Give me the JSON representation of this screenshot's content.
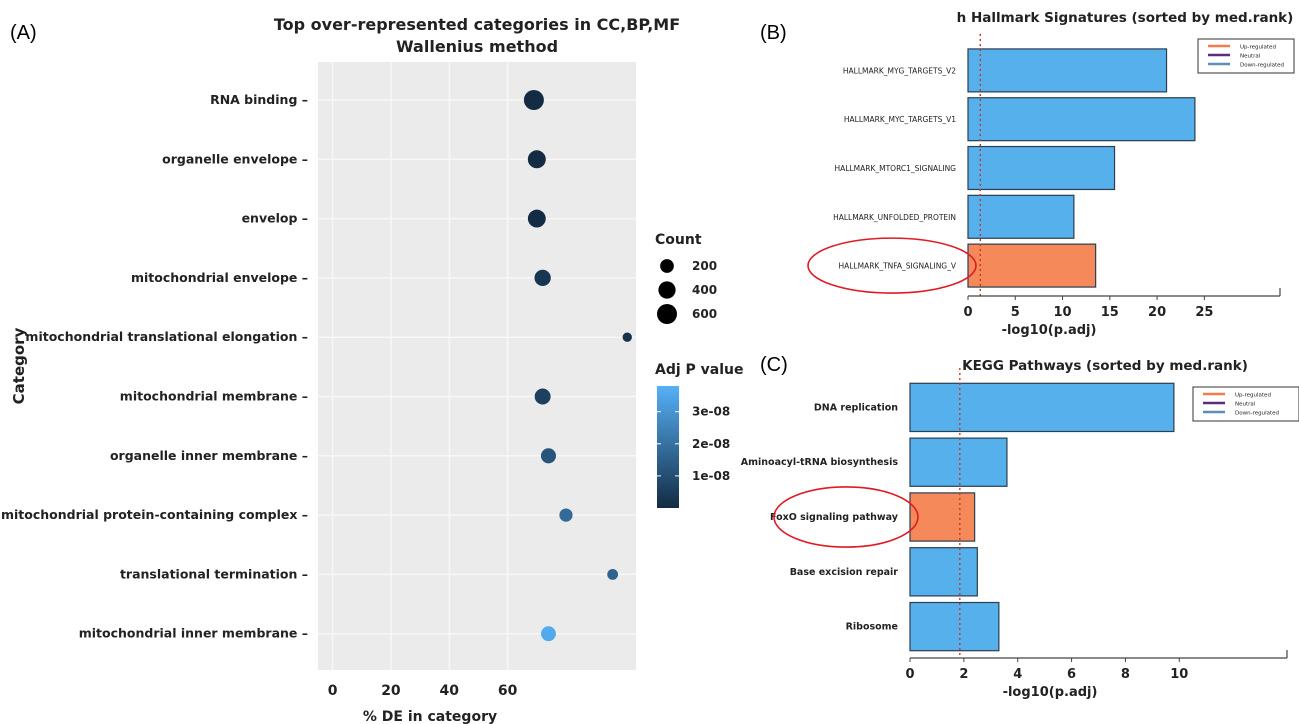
{
  "panel_labels": {
    "a": "(A)",
    "b": "(B)",
    "c": "(C)"
  },
  "chart_data": [
    {
      "type": "scatter",
      "title": "Top over-represented categories in CC,BP,MF",
      "subtitle": "Wallenius method",
      "xlabel": "% DE in category",
      "ylabel": "Category",
      "xlim": [
        -5,
        104
      ],
      "xticks": [
        0,
        20,
        40,
        60
      ],
      "categories": [
        "RNA binding",
        "organelle envelope",
        "envelop",
        "mitochondrial envelope",
        "mitochondrial translational elongation",
        "mitochondrial membrane",
        "organelle inner membrane",
        "mitochondrial protein-containing complex",
        "translational termination",
        "mitochondrial inner membrane"
      ],
      "x": [
        69,
        70,
        70,
        72,
        101,
        72,
        74,
        80,
        96,
        74
      ],
      "count": [
        600,
        450,
        440,
        340,
        50,
        320,
        270,
        180,
        90,
        260
      ],
      "adj_p": [
        0,
        0,
        0,
        3e-09,
        2e-09,
        6e-09,
        1.2e-08,
        1.8e-08,
        1.6e-08,
        3.6e-08
      ],
      "size_legend": {
        "title": "Count",
        "values": [
          200,
          400,
          600
        ]
      },
      "color_legend": {
        "title": "Adj P value",
        "ticks": [
          {
            "label": "3e-08",
            "value": 3e-08
          },
          {
            "label": "2e-08",
            "value": 2e-08
          },
          {
            "label": "1e-08",
            "value": 1e-08
          }
        ],
        "min": 0,
        "max": 3.8e-08,
        "low_color": "#132b43",
        "high_color": "#56b1f7"
      },
      "grid": true,
      "panel_bg": "#ebebeb"
    },
    {
      "type": "bar",
      "orientation": "horizontal",
      "title": "h Hallmark Signatures (sorted by med.rank)",
      "xlabel": "-log10(p.adj)",
      "categories": [
        "HALLMARK_MYG_TARGETS_V2",
        "HALLMARK_MYC_TARGETS_V1",
        "HALLMARK_MTORC1_SIGNALING",
        "HALLMARK_UNFOLDED_PROTEIN",
        "HALLMARK_TNFA_SIGNALING_V"
      ],
      "values": [
        21,
        24,
        15.5,
        11.2,
        13.5
      ],
      "regulation": [
        "down",
        "down",
        "down",
        "down",
        "up"
      ],
      "highlighted": "HALLMARK_TNFA_SIGNALING_V",
      "xticks": [
        0,
        5,
        10,
        15,
        20,
        25
      ],
      "xlim": [
        0,
        33
      ],
      "threshold": 1.3,
      "legend": {
        "placement": "top-right",
        "entries": [
          {
            "label": "Up-regulated",
            "color": "#f47b4a"
          },
          {
            "label": "Neutral",
            "color": "#5a2d82"
          },
          {
            "label": "Down-regulated",
            "color": "#5b8fb5"
          }
        ]
      }
    },
    {
      "type": "bar",
      "orientation": "horizontal",
      "title": "KEGG Pathways (sorted by med.rank)",
      "xlabel": "-log10(p.adj)",
      "categories": [
        "DNA replication",
        "Aminoacyl-tRNA biosynthesis",
        "FoxO signaling pathway",
        "Base excision repair",
        "Ribosome"
      ],
      "values": [
        9.8,
        3.6,
        2.4,
        2.5,
        3.3
      ],
      "regulation": [
        "down",
        "down",
        "up",
        "down",
        "down"
      ],
      "highlighted": "FoxO signaling pathway",
      "xticks": [
        0,
        2,
        4,
        6,
        8,
        10
      ],
      "xlim": [
        0,
        14
      ],
      "threshold": 1.85,
      "legend": {
        "placement": "top-right",
        "entries": [
          {
            "label": "Up-regulated",
            "color": "#f47b4a"
          },
          {
            "label": "Neutral",
            "color": "#5a2d82"
          },
          {
            "label": "Down-regulated",
            "color": "#5b8fb5"
          }
        ]
      }
    }
  ],
  "colors": {
    "up": "#f6895a",
    "down": "#56b0ec",
    "bar_stroke": "#2c3e50",
    "threshold": "#c0392b",
    "highlight": "#e01b24"
  }
}
